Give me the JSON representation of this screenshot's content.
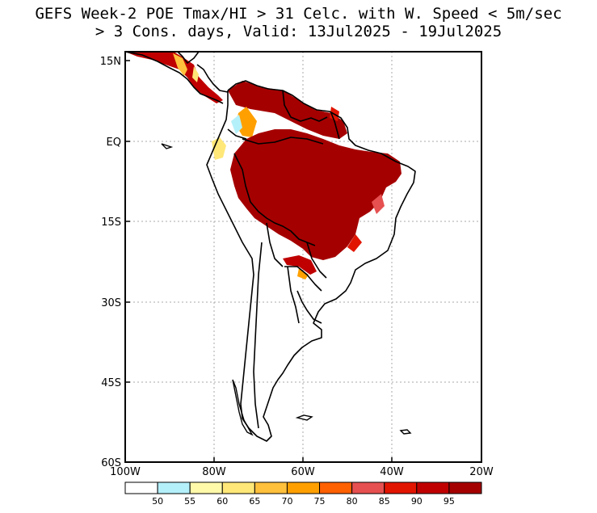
{
  "title": {
    "line1": "GEFS Week-2 POE Tmax/HI > 31 Celc. with W. Speed < 5m/sec",
    "line2": "> 3 Cons. days, Valid: 13Jul2025 - 19Jul2025"
  },
  "axes": {
    "lat_labels": [
      "15N",
      "EQ",
      "15S",
      "30S",
      "45S",
      "60S"
    ],
    "lon_labels": [
      "100W",
      "80W",
      "60W",
      "40W",
      "20W"
    ]
  },
  "colorbar": {
    "labels": [
      "50",
      "55",
      "60",
      "65",
      "70",
      "75",
      "80",
      "85",
      "90",
      "95"
    ],
    "colors": [
      "#ffffff",
      "#b4f0fa",
      "#fffaaa",
      "#ffe878",
      "#ffc03c",
      "#ffa000",
      "#ff6000",
      "#e65050",
      "#e11400",
      "#c00000",
      "#a50000"
    ]
  },
  "map_colors": {
    "land_outline": "#000000",
    "grid": "#aaaaaa",
    "high_prob": "#a50000"
  }
}
